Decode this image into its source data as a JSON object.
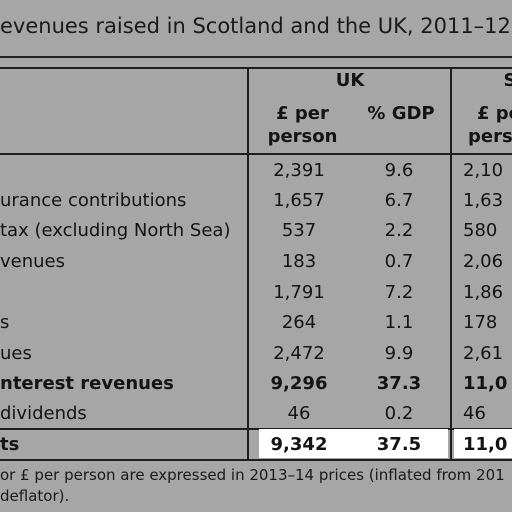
{
  "title": "evenues raised in Scotland and the UK, 2011–12",
  "columns": {
    "group_uk": "UK",
    "group_right": "S",
    "col1_line1": "£ per",
    "col1_line2": "person",
    "col2": "% GDP",
    "col3_line1": "£ pe",
    "col3_line2": "perso"
  },
  "rows": [
    {
      "label": "",
      "uk_pp": "2,391",
      "uk_gdp": "9.6",
      "sc_pp": "2,10",
      "bold": false
    },
    {
      "label": "urance contributions",
      "uk_pp": "1,657",
      "uk_gdp": "6.7",
      "sc_pp": "1,63",
      "bold": false
    },
    {
      "label": "tax (excluding North Sea)",
      "uk_pp": "537",
      "uk_gdp": "2.2",
      "sc_pp": "580",
      "bold": false
    },
    {
      "label": "venues",
      "uk_pp": "183",
      "uk_gdp": "0.7",
      "sc_pp": "2,06",
      "bold": false
    },
    {
      "label": "",
      "uk_pp": "1,791",
      "uk_gdp": "7.2",
      "sc_pp": "1,86",
      "bold": false
    },
    {
      "label": "s",
      "uk_pp": "264",
      "uk_gdp": "1.1",
      "sc_pp": "178",
      "bold": false
    },
    {
      "label": "ues",
      "uk_pp": "2,472",
      "uk_gdp": "9.9",
      "sc_pp": "2,61",
      "bold": false
    },
    {
      "label": "nterest revenues",
      "uk_pp": "9,296",
      "uk_gdp": "37.3",
      "sc_pp": "11,0",
      "bold": true
    },
    {
      "label": "dividends",
      "uk_pp": "46",
      "uk_gdp": "0.2",
      "sc_pp": "46",
      "bold": false
    },
    {
      "label": "ts",
      "uk_pp": "9,342",
      "uk_gdp": "37.5",
      "sc_pp": "11,0",
      "bold": true
    }
  ],
  "notes": {
    "line1": "or £ per person are expressed in 2013–14 prices (inflated from 201",
    "line2": "deflator)."
  }
}
